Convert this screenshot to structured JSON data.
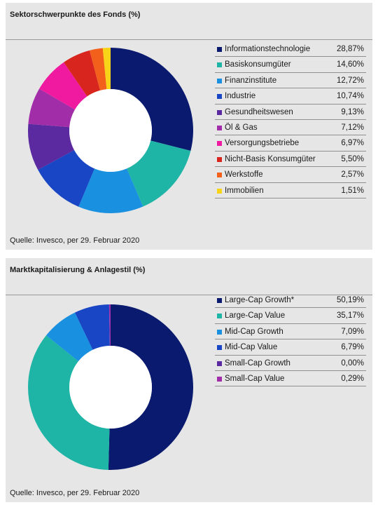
{
  "panels": [
    {
      "title": "Sektorschwerpunkte des Fonds (%)",
      "source": "Quelle: Invesco, per 29. Februar 2020"
    },
    {
      "title": "Marktkapitalisierung & Anlagestil (%)",
      "source": "Quelle: Invesco, per 29. Februar 2020"
    }
  ],
  "chart_data": [
    {
      "type": "pie",
      "title": "Sektorschwerpunkte des Fonds (%)",
      "donut": true,
      "legend_position": "right",
      "categories": [
        "Informationstechnologie",
        "Basiskonsumgüter",
        "Finanzinstitute",
        "Industrie",
        "Gesundheitswesen",
        "Öl & Gas",
        "Versorgungsbetriebe",
        "Nicht-Basis Konsumgüter",
        "Werkstoffe",
        "Immobilien"
      ],
      "values": [
        28.87,
        14.6,
        12.72,
        10.74,
        9.13,
        7.12,
        6.97,
        5.5,
        2.57,
        1.51
      ],
      "value_labels": [
        "28,87%",
        "14,60%",
        "12,72%",
        "10,74%",
        "9,13%",
        "7,12%",
        "6,97%",
        "5,50%",
        "2,57%",
        "1,51%"
      ],
      "colors": [
        "#0a1a6e",
        "#1fb5a6",
        "#1a90e0",
        "#1846c4",
        "#5b2aa0",
        "#a12ea8",
        "#f01aa0",
        "#d8261e",
        "#f2601c",
        "#f8d418"
      ]
    },
    {
      "type": "pie",
      "title": "Marktkapitalisierung & Anlagestil (%)",
      "donut": true,
      "legend_position": "right",
      "categories": [
        "Large-Cap Growth*",
        "Large-Cap Value",
        "Mid-Cap Growth",
        "Mid-Cap Value",
        "Small-Cap Growth",
        "Small-Cap Value"
      ],
      "values": [
        50.19,
        35.17,
        7.09,
        6.79,
        0.0,
        0.29
      ],
      "value_labels": [
        "50,19%",
        "35,17%",
        "7,09%",
        "6,79%",
        "0,00%",
        "0,29%"
      ],
      "colors": [
        "#0a1a6e",
        "#1fb5a6",
        "#1a90e0",
        "#1846c4",
        "#5b2aa0",
        "#a12ea8"
      ]
    }
  ]
}
